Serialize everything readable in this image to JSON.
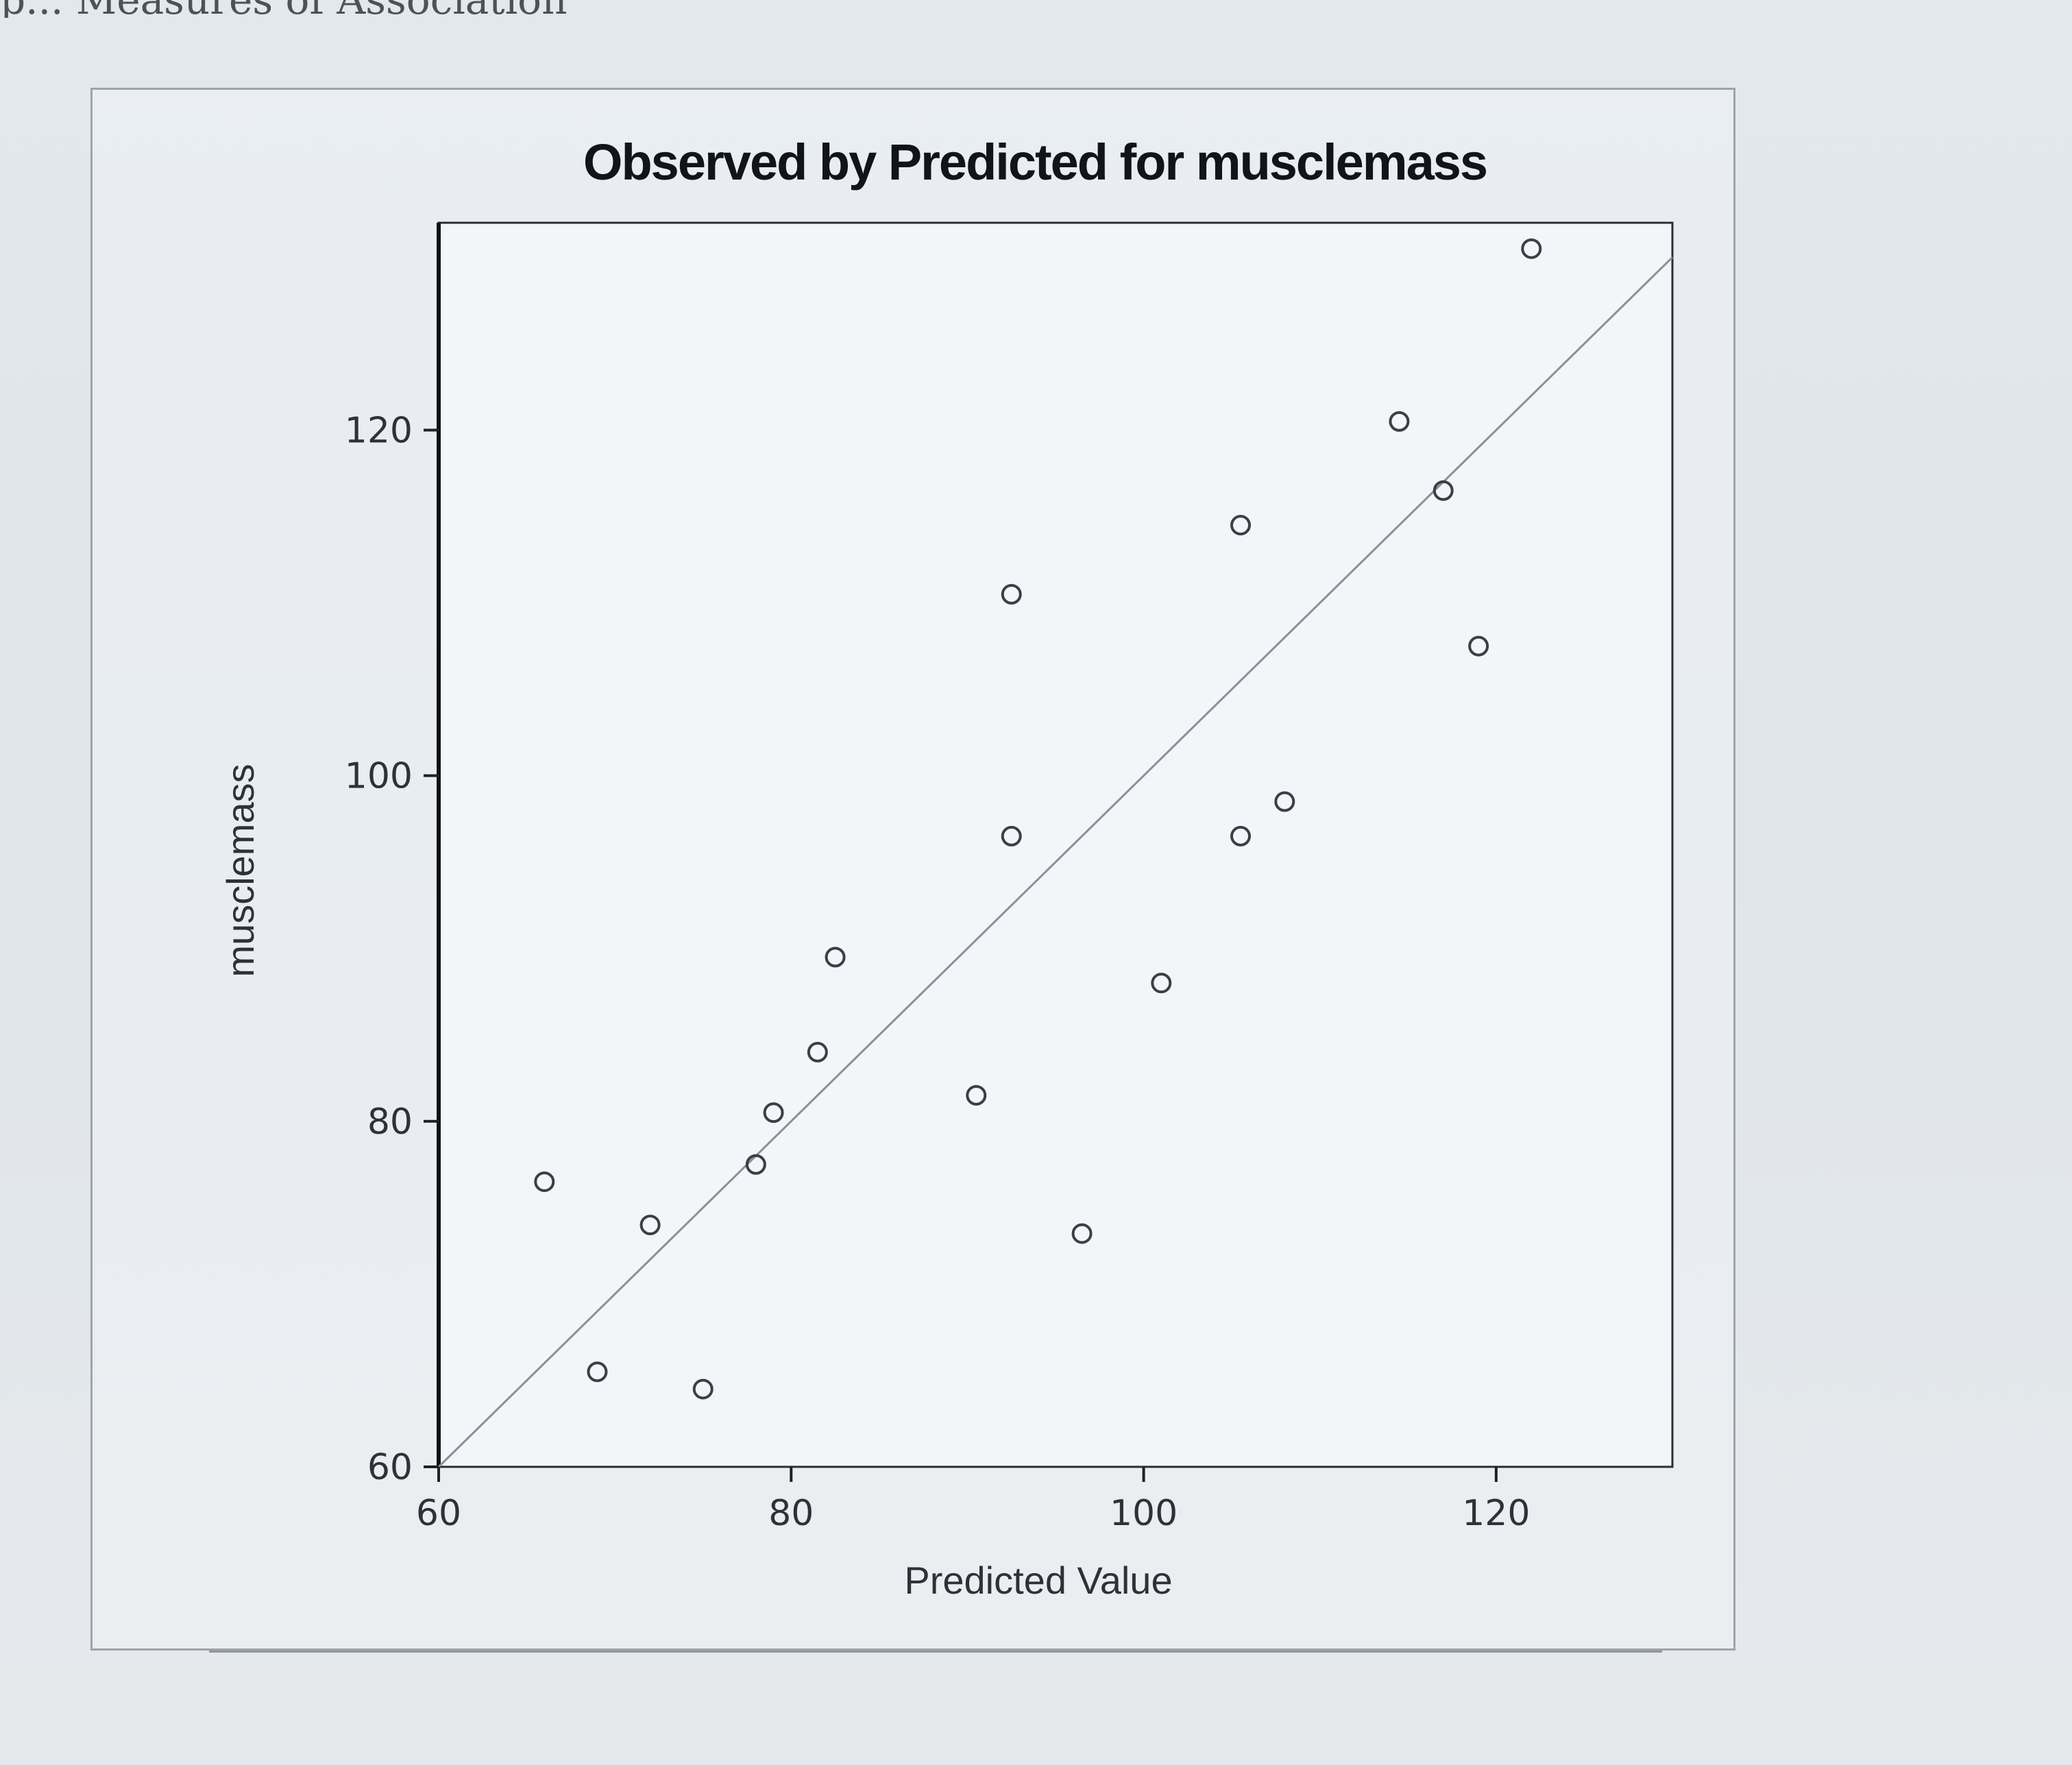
{
  "page": {
    "header_fragment": "p... Measures of Association"
  },
  "chart_data": {
    "type": "scatter",
    "title": "Observed by Predicted for musclemass",
    "xlabel": "Predicted Value",
    "ylabel": "musclemass",
    "xlim": [
      60,
      130
    ],
    "ylim": [
      60,
      132
    ],
    "x_ticks": [
      60,
      80,
      100,
      120
    ],
    "y_ticks": [
      60,
      80,
      100,
      120
    ],
    "reference_line": "y = x",
    "grid": false,
    "marker": "hollow-circle",
    "colors": {
      "marker": "#3a3f48",
      "reference_line": "#8a9099",
      "axis": "#1e2126"
    },
    "points": [
      {
        "x": 66.0,
        "y": 76.5
      },
      {
        "x": 69.0,
        "y": 65.5
      },
      {
        "x": 72.0,
        "y": 74.0
      },
      {
        "x": 75.0,
        "y": 64.5
      },
      {
        "x": 78.0,
        "y": 77.5
      },
      {
        "x": 79.0,
        "y": 80.5
      },
      {
        "x": 81.5,
        "y": 84.0
      },
      {
        "x": 82.5,
        "y": 89.5
      },
      {
        "x": 90.5,
        "y": 81.5
      },
      {
        "x": 92.5,
        "y": 110.5
      },
      {
        "x": 92.5,
        "y": 96.5
      },
      {
        "x": 96.5,
        "y": 73.5
      },
      {
        "x": 101.0,
        "y": 88.0
      },
      {
        "x": 105.5,
        "y": 114.5
      },
      {
        "x": 105.5,
        "y": 96.5
      },
      {
        "x": 108.0,
        "y": 98.5
      },
      {
        "x": 114.5,
        "y": 120.5
      },
      {
        "x": 117.0,
        "y": 116.5
      },
      {
        "x": 119.0,
        "y": 107.5
      },
      {
        "x": 122.0,
        "y": 130.5
      }
    ]
  }
}
